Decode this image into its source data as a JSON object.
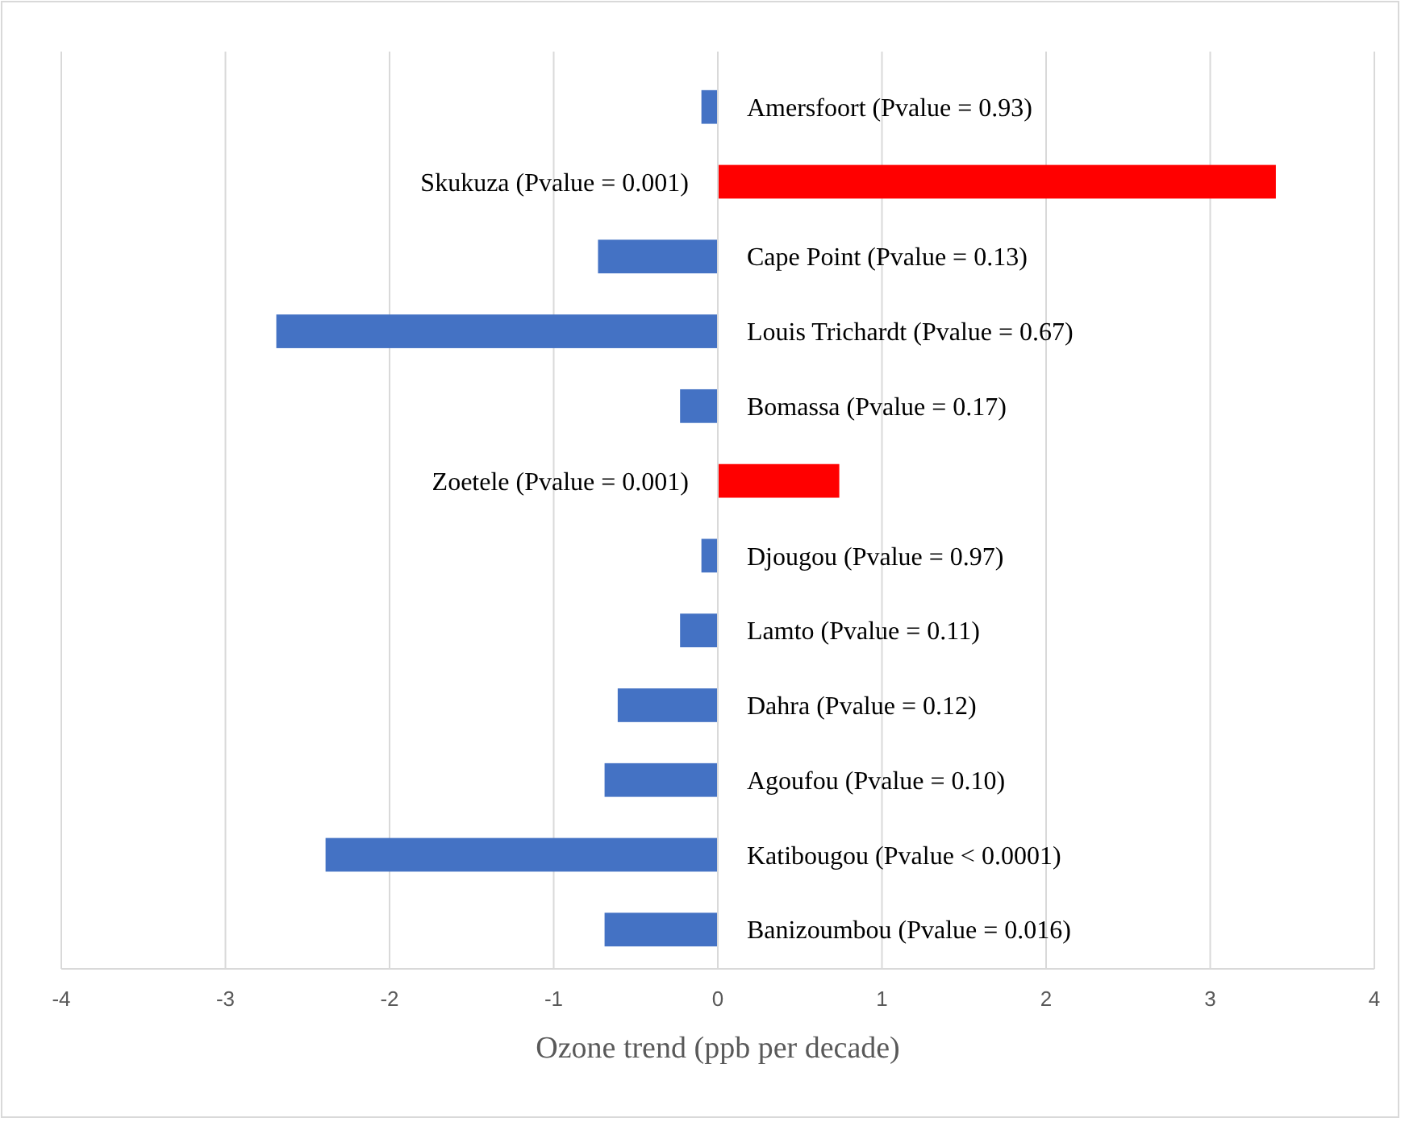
{
  "chart_data": {
    "type": "bar",
    "orientation": "horizontal",
    "xlabel": "Ozone trend (ppb per decade)",
    "categories": [
      "Amersfoort (Pvalue = 0.93)",
      "Skukuza (Pvalue = 0.001)",
      "Cape Point (Pvalue = 0.13)",
      "Louis Trichardt  (Pvalue = 0.67)",
      "Bomassa (Pvalue = 0.17)",
      "Zoetele (Pvalue = 0.001)",
      "Djougou (Pvalue = 0.97)",
      "Lamto (Pvalue = 0.11)",
      "Dahra (Pvalue = 0.12)",
      "Agoufou (Pvalue = 0.10)",
      "Katibougou (Pvalue < 0.0001)",
      "Banizoumbou (Pvalue = 0.016)"
    ],
    "values": [
      -0.1,
      3.4,
      -0.73,
      -2.69,
      -0.23,
      0.74,
      -0.1,
      -0.23,
      -0.61,
      -0.69,
      -2.39,
      -0.69
    ],
    "colors": [
      "#4472c4",
      "#ff0000",
      "#4472c4",
      "#4472c4",
      "#4472c4",
      "#ff0000",
      "#4472c4",
      "#4472c4",
      "#4472c4",
      "#4472c4",
      "#4472c4",
      "#4472c4"
    ],
    "xlim": [
      -4,
      4
    ],
    "xticks": [
      -4,
      -3,
      -2,
      -1,
      0,
      1,
      2,
      3,
      4
    ],
    "grid": "x"
  }
}
